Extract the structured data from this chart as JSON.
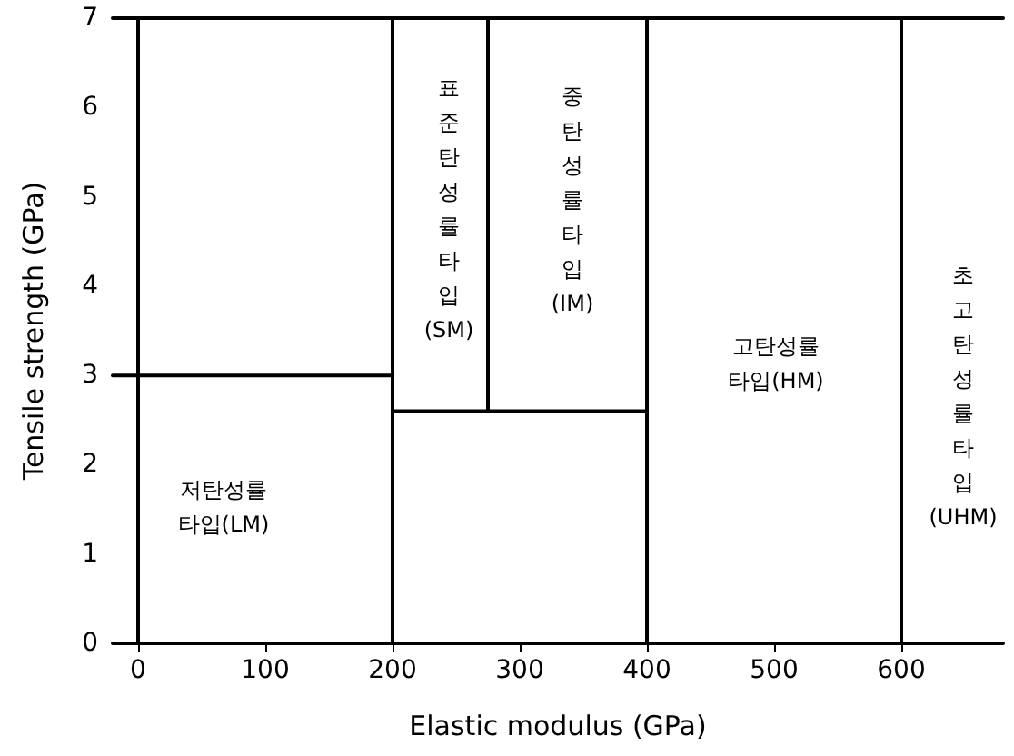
{
  "chart_data": {
    "type": "line",
    "xlabel": "Elastic modulus (GPa)",
    "ylabel": "Tensile strength (GPa)",
    "xlim": [
      -20,
      680
    ],
    "xticks": [
      0,
      100,
      200,
      300,
      400,
      500,
      600
    ],
    "ylim": [
      0,
      7
    ],
    "yticks": [
      0,
      1,
      2,
      3,
      4,
      5,
      6,
      7
    ],
    "grid": false,
    "marker": "none",
    "line_style": "solid",
    "series": [
      {
        "color": "#000000",
        "x": [
          -20,
          200
        ],
        "values": [
          3,
          3
        ]
      },
      {
        "color": "#000000",
        "x": [
          200,
          200
        ],
        "values": [
          0,
          7
        ]
      },
      {
        "color": "#000000",
        "x": [
          200,
          400
        ],
        "values": [
          2.6,
          2.6
        ]
      },
      {
        "color": "#000000",
        "x": [
          275,
          275
        ],
        "values": [
          2.6,
          7
        ]
      },
      {
        "color": "#000000",
        "x": [
          400,
          400
        ],
        "values": [
          0,
          7
        ]
      },
      {
        "color": "#000000",
        "x": [
          600,
          600
        ],
        "values": [
          0,
          7
        ]
      },
      {
        "color": "#000000",
        "x": [
          -20,
          680
        ],
        "values": [
          7,
          7
        ]
      }
    ],
    "annotations": [
      "저탄성률\n타입(LM)",
      "표\n준\n탄\n성\n률\n타\n입\n(SM)",
      "중\n탄\n성\n률\n타\n입\n(IM)",
      "고탄성률\n타입(HM)",
      "초\n고\n탄\n성\n률\n타\n입\n(UHM)"
    ]
  }
}
